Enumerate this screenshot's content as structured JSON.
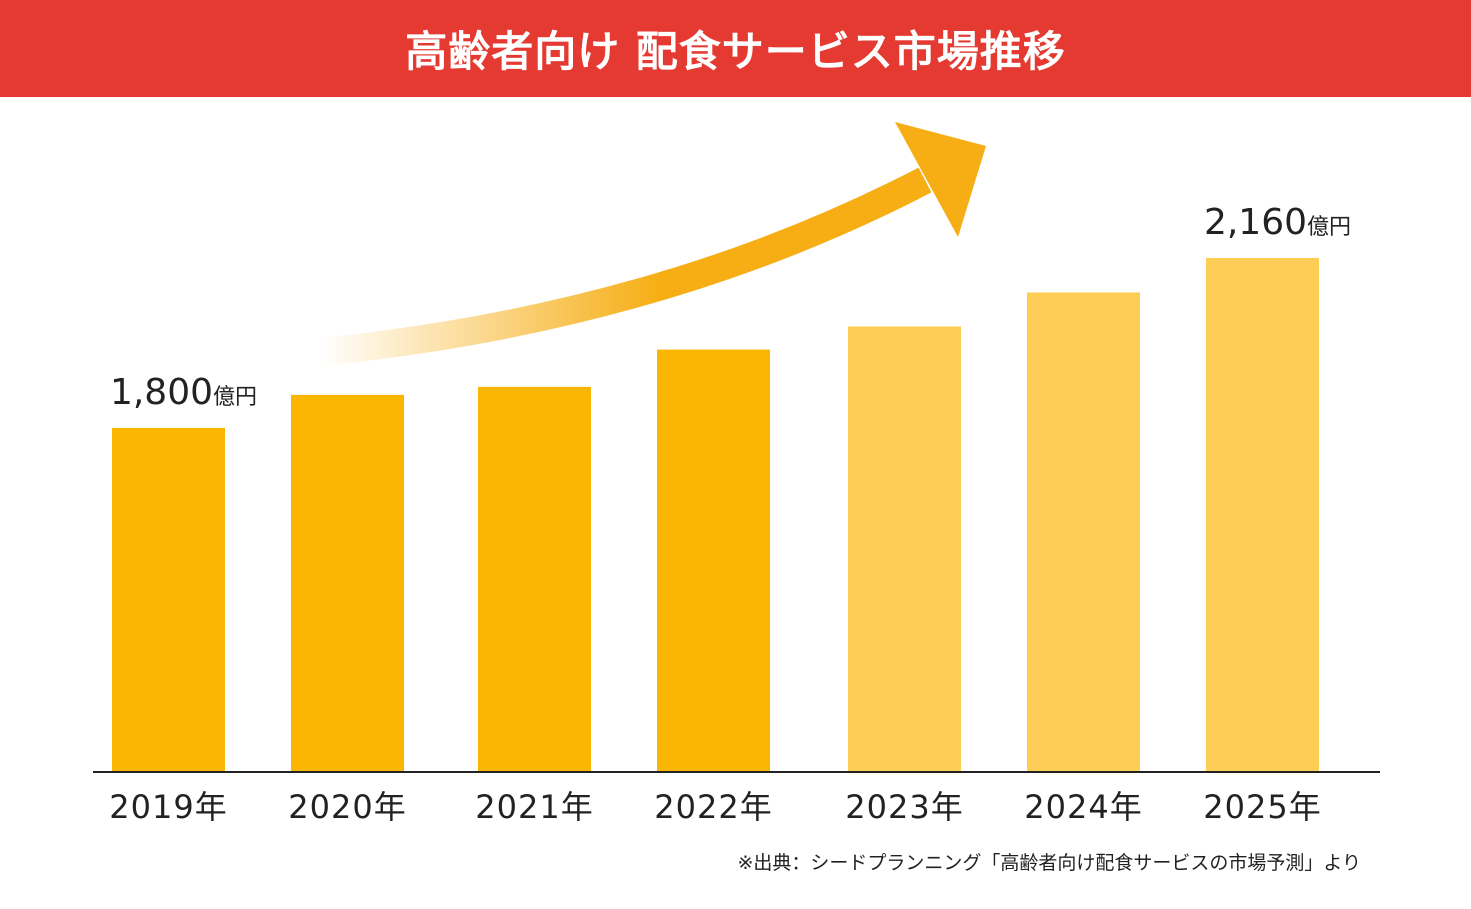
{
  "chart_data": {
    "type": "bar",
    "title": "高齢者向け 配食サービス市場推移",
    "categories": [
      "2019年",
      "2020年",
      "2021年",
      "2022年",
      "2023年",
      "2024年",
      "2025年"
    ],
    "values": [
      1800,
      1870,
      1887,
      1966,
      2015,
      2087,
      2160
    ],
    "forecast_from_index": 4,
    "data_labels": [
      {
        "index": 0,
        "value": "1,800",
        "unit": "億円"
      },
      {
        "index": 6,
        "value": "2,160",
        "unit": "億円"
      }
    ],
    "ylim": [
      1071,
      2160
    ],
    "grid": false,
    "colors": {
      "actual": "#fbb604",
      "forecast": "#fdcd55",
      "header": "#e43a32",
      "arrow": "#f6ae14"
    },
    "source": "※出典：シードプランニング「高齢者向け配食サービスの市場予測」より"
  }
}
